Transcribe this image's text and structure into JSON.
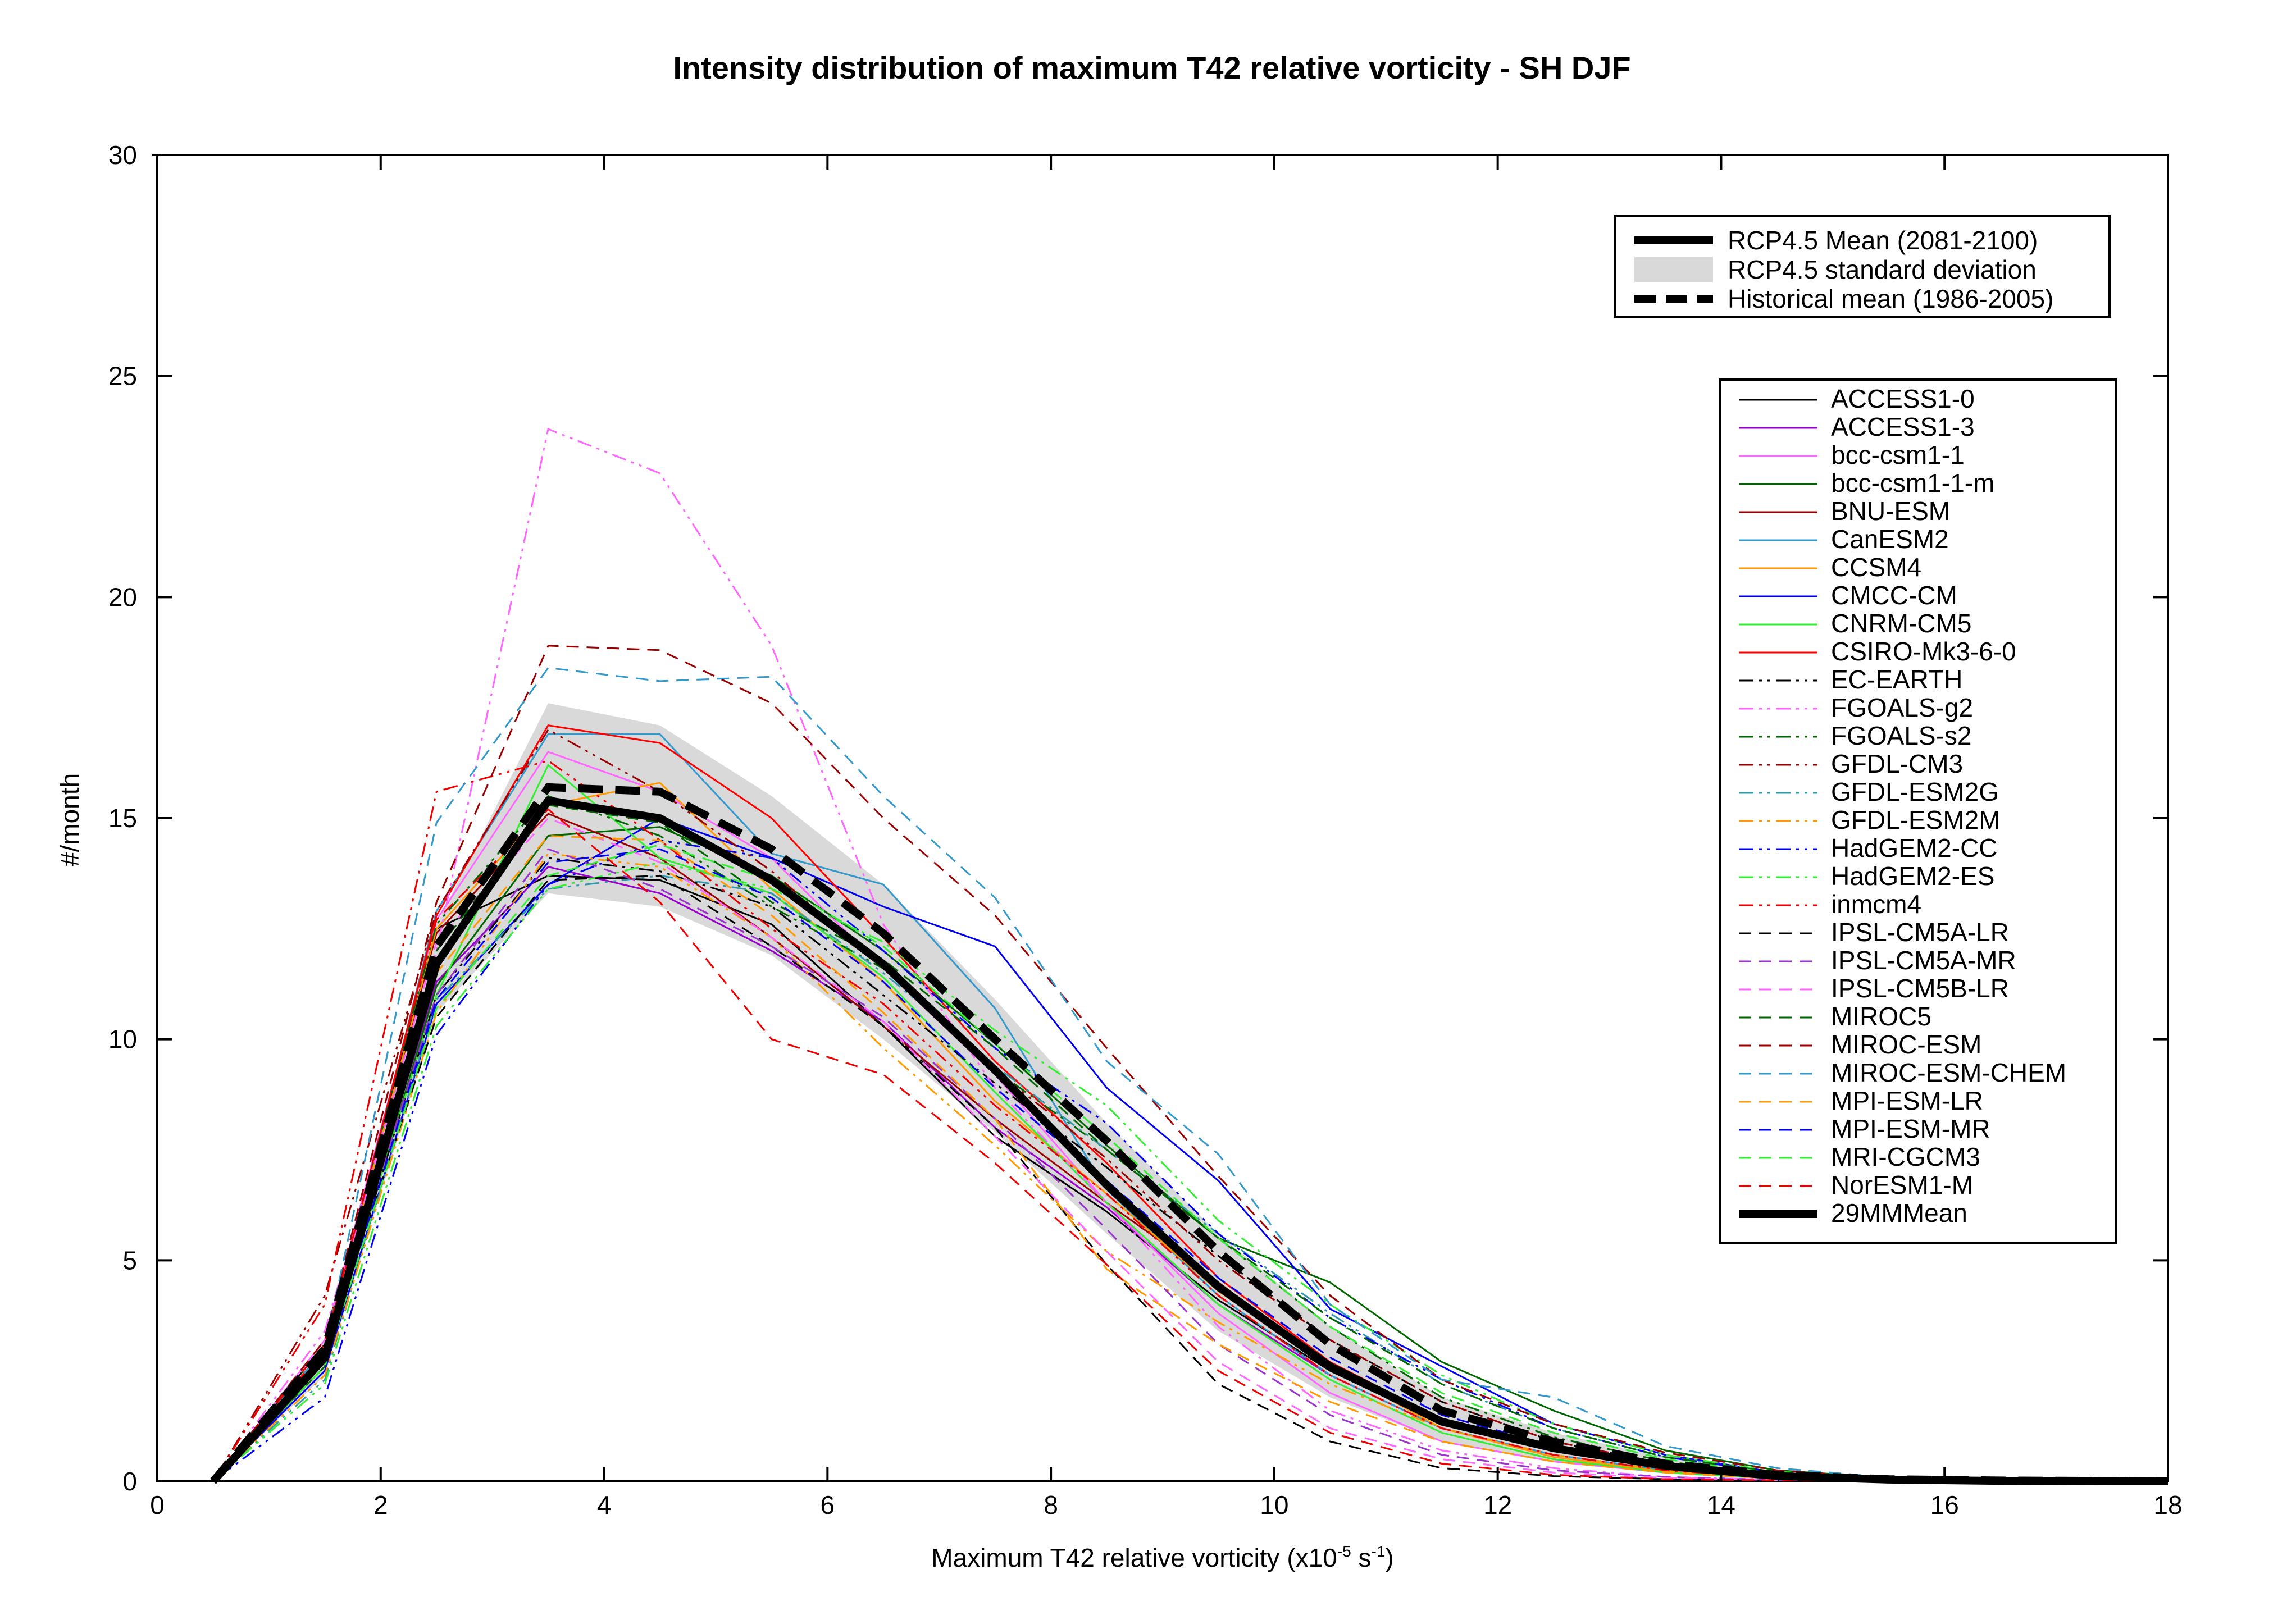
{
  "chart_data": {
    "type": "line",
    "title": "Intensity distribution of maximum T42 relative vorticity - SH DJF",
    "xlabel_main": "Maximum T42 relative vorticity (x10",
    "xlabel_exp": "-5",
    "xlabel_mid": " s",
    "xlabel_exp2": "-1",
    "xlabel_end": ")",
    "ylabel": "#/month",
    "xlim": [
      0,
      18
    ],
    "ylim": [
      0,
      30
    ],
    "xticks": [
      0,
      2,
      4,
      6,
      8,
      10,
      12,
      14,
      16,
      18
    ],
    "yticks": [
      0,
      5,
      10,
      15,
      20,
      25,
      30
    ],
    "grid": false,
    "x": [
      0.5,
      1.5,
      2.5,
      3.5,
      4.5,
      5.5,
      6.5,
      7.5,
      8.5,
      9.5,
      10.5,
      11.5,
      12.5,
      13.5,
      14.5,
      15.5,
      16.5,
      17.5,
      18
    ],
    "legend_top": {
      "placement": "top-right",
      "entries": [
        {
          "label": "RCP4.5 Mean (2081-2100)",
          "style": "thick-solid",
          "color": "#000000"
        },
        {
          "label": "RCP4.5 standard deviation",
          "style": "band",
          "color": "#d9d9d9"
        },
        {
          "label": "Historical mean (1986-2005)",
          "style": "thick-dashed",
          "color": "#000000"
        }
      ]
    },
    "std_band": {
      "upper": [
        0,
        3.2,
        12.6,
        17.6,
        17.1,
        15.5,
        13.5,
        10.9,
        8.1,
        5.6,
        3.5,
        1.9,
        1.1,
        0.55,
        0.22,
        0.08,
        0.03,
        0.01,
        0
      ],
      "lower": [
        0,
        2.4,
        10.6,
        13.3,
        13.0,
        11.9,
        10.0,
        7.9,
        5.6,
        3.4,
        1.9,
        0.9,
        0.45,
        0.2,
        0.06,
        0.02,
        0.01,
        0,
        0
      ]
    },
    "historical_mean": [
      0,
      3.0,
      12.1,
      15.7,
      15.6,
      14.3,
      12.4,
      10.0,
      7.7,
      5.2,
      3.1,
      1.6,
      0.9,
      0.4,
      0.15,
      0.05,
      0.02,
      0.01,
      0
    ],
    "rcp_mean": [
      0,
      2.8,
      11.7,
      15.4,
      15.0,
      13.6,
      11.7,
      9.3,
      6.7,
      4.4,
      2.6,
      1.35,
      0.75,
      0.35,
      0.12,
      0.04,
      0.01,
      0,
      0
    ],
    "series": [
      {
        "name": "ACCESS1-0",
        "color": "#000000",
        "dash": "solid",
        "values": [
          0,
          3.1,
          12.5,
          13.7,
          13.6,
          12.6,
          10.3,
          7.8,
          6.1,
          4.1,
          2.5,
          1.3,
          0.7,
          0.3,
          0.1,
          0.03,
          0.01,
          0,
          0
        ]
      },
      {
        "name": "ACCESS1-3",
        "color": "#9900cc",
        "dash": "solid",
        "values": [
          0,
          2.9,
          11.3,
          13.9,
          13.3,
          12.0,
          10.4,
          8.0,
          6.2,
          4.0,
          2.4,
          1.2,
          0.6,
          0.25,
          0.08,
          0.02,
          0.01,
          0,
          0
        ]
      },
      {
        "name": "bcc-csm1-1",
        "color": "#ff66ff",
        "dash": "solid",
        "values": [
          0,
          3.2,
          12.7,
          16.5,
          15.6,
          14.1,
          11.6,
          9.2,
          6.3,
          3.8,
          2.0,
          0.9,
          0.45,
          0.2,
          0.06,
          0.02,
          0.01,
          0,
          0
        ]
      },
      {
        "name": "bcc-csm1-1-m",
        "color": "#006600",
        "dash": "solid",
        "values": [
          0,
          2.6,
          11.2,
          14.6,
          14.8,
          13.7,
          12.0,
          9.9,
          7.6,
          5.5,
          4.5,
          2.7,
          1.6,
          0.7,
          0.25,
          0.08,
          0.02,
          0.01,
          0
        ]
      },
      {
        "name": "BNU-ESM",
        "color": "#990000",
        "dash": "solid",
        "values": [
          0,
          3.0,
          12.4,
          15.1,
          14.1,
          12.3,
          10.3,
          8.2,
          6.3,
          4.5,
          2.6,
          1.4,
          0.75,
          0.3,
          0.1,
          0.03,
          0.01,
          0,
          0
        ]
      },
      {
        "name": "CanESM2",
        "color": "#3399cc",
        "dash": "solid",
        "values": [
          0,
          2.8,
          12.9,
          16.9,
          16.9,
          14.2,
          13.5,
          10.7,
          6.6,
          4.2,
          2.4,
          1.2,
          0.6,
          0.25,
          0.08,
          0.02,
          0.01,
          0,
          0
        ]
      },
      {
        "name": "CCSM4",
        "color": "#ff9900",
        "dash": "solid",
        "values": [
          0,
          2.9,
          12.5,
          15.3,
          15.8,
          13.4,
          11.3,
          8.6,
          6.5,
          4.3,
          2.6,
          1.2,
          0.55,
          0.22,
          0.07,
          0.02,
          0.01,
          0,
          0
        ]
      },
      {
        "name": "CMCC-CM",
        "color": "#0000ee",
        "dash": "solid",
        "values": [
          0,
          2.5,
          10.8,
          13.5,
          15.0,
          14.1,
          13.0,
          12.1,
          8.9,
          6.8,
          3.9,
          2.6,
          1.3,
          0.6,
          0.2,
          0.06,
          0.02,
          0.01,
          0
        ]
      },
      {
        "name": "CNRM-CM5",
        "color": "#33ee33",
        "dash": "solid",
        "values": [
          0,
          2.8,
          11.0,
          16.2,
          14.1,
          13.3,
          11.4,
          8.8,
          6.3,
          4.0,
          2.3,
          1.1,
          0.5,
          0.2,
          0.06,
          0.02,
          0.01,
          0,
          0
        ]
      },
      {
        "name": "CSIRO-Mk3-6-0",
        "color": "#ff0000",
        "dash": "solid",
        "values": [
          0,
          3.0,
          12.8,
          17.1,
          16.7,
          15.0,
          12.3,
          9.5,
          7.2,
          4.6,
          2.7,
          1.4,
          0.7,
          0.3,
          0.1,
          0.03,
          0.01,
          0,
          0
        ]
      },
      {
        "name": "EC-EARTH",
        "color": "#000000",
        "dash": "dashdotdot",
        "values": [
          0,
          2.7,
          11.0,
          14.1,
          13.8,
          13.0,
          11.0,
          9.0,
          7.1,
          5.1,
          3.2,
          1.8,
          0.9,
          0.4,
          0.14,
          0.04,
          0.01,
          0,
          0
        ]
      },
      {
        "name": "FGOALS-g2",
        "color": "#ff66ff",
        "dash": "dashdotdot",
        "values": [
          0,
          3.4,
          12.0,
          23.8,
          22.8,
          18.9,
          12.6,
          8.9,
          6.3,
          3.5,
          1.6,
          0.7,
          0.3,
          0.1,
          0.04,
          0.01,
          0,
          0,
          0
        ]
      },
      {
        "name": "FGOALS-s2",
        "color": "#006600",
        "dash": "dashdotdot",
        "values": [
          0,
          3.1,
          12.6,
          15.5,
          14.6,
          13.0,
          11.6,
          9.3,
          7.5,
          5.5,
          3.5,
          1.9,
          1.0,
          0.45,
          0.15,
          0.05,
          0.01,
          0,
          0
        ]
      },
      {
        "name": "GFDL-CM3",
        "color": "#990000",
        "dash": "dashdotdot",
        "values": [
          0,
          4.2,
          12.9,
          17.0,
          15.6,
          13.8,
          11.6,
          9.3,
          7.3,
          5.0,
          3.2,
          1.8,
          0.9,
          0.4,
          0.13,
          0.04,
          0.01,
          0,
          0
        ]
      },
      {
        "name": "GFDL-ESM2G",
        "color": "#3399aa",
        "dash": "dashdotdot",
        "values": [
          0,
          2.3,
          10.9,
          13.4,
          13.7,
          13.3,
          11.5,
          9.4,
          7.5,
          5.6,
          3.8,
          2.2,
          1.2,
          0.55,
          0.2,
          0.06,
          0.02,
          0.01,
          0
        ]
      },
      {
        "name": "GFDL-ESM2M",
        "color": "#ff9900",
        "dash": "dashdotdot",
        "values": [
          0,
          2.4,
          10.6,
          14.2,
          13.9,
          12.3,
          9.8,
          7.6,
          5.2,
          3.6,
          2.2,
          1.2,
          0.6,
          0.25,
          0.08,
          0.02,
          0.01,
          0,
          0
        ]
      },
      {
        "name": "HadGEM2-CC",
        "color": "#0000ee",
        "dash": "dashdotdot",
        "values": [
          0,
          1.9,
          10.1,
          13.5,
          14.5,
          14.1,
          12.0,
          9.8,
          8.1,
          5.6,
          3.7,
          2.3,
          1.2,
          0.55,
          0.2,
          0.06,
          0.02,
          0.01,
          0
        ]
      },
      {
        "name": "HadGEM2-ES",
        "color": "#33ee33",
        "dash": "dashdotdot",
        "values": [
          0,
          2.2,
          10.3,
          13.4,
          14.0,
          13.4,
          12.2,
          10.2,
          8.5,
          5.9,
          4.0,
          2.4,
          1.3,
          0.6,
          0.22,
          0.07,
          0.02,
          0.01,
          0
        ]
      },
      {
        "name": "inmcm4",
        "color": "#ee0000",
        "dash": "dashdotdot",
        "values": [
          0,
          4.0,
          15.6,
          16.3,
          14.5,
          12.5,
          10.8,
          8.5,
          6.5,
          4.2,
          2.4,
          1.2,
          0.6,
          0.25,
          0.08,
          0.02,
          0.01,
          0,
          0
        ]
      },
      {
        "name": "IPSL-CM5A-LR",
        "color": "#000000",
        "dash": "dashed",
        "values": [
          0,
          2.9,
          10.5,
          13.6,
          13.7,
          12.1,
          10.3,
          8.0,
          4.9,
          2.2,
          0.9,
          0.3,
          0.12,
          0.05,
          0.02,
          0.01,
          0,
          0,
          0
        ]
      },
      {
        "name": "IPSL-CM5A-MR",
        "color": "#9933cc",
        "dash": "dashed",
        "values": [
          0,
          2.9,
          11.0,
          14.3,
          13.4,
          12.1,
          10.5,
          8.2,
          5.7,
          3.1,
          1.5,
          0.6,
          0.25,
          0.1,
          0.03,
          0.01,
          0,
          0,
          0
        ]
      },
      {
        "name": "IPSL-CM5B-LR",
        "color": "#ff66ff",
        "dash": "dashed",
        "values": [
          0,
          3.1,
          12.2,
          15.0,
          14.0,
          12.3,
          10.4,
          7.8,
          5.2,
          2.7,
          1.2,
          0.5,
          0.2,
          0.08,
          0.03,
          0.01,
          0,
          0,
          0
        ]
      },
      {
        "name": "MIROC5",
        "color": "#006600",
        "dash": "dashed",
        "values": [
          0,
          3.0,
          12.0,
          15.3,
          14.9,
          13.1,
          11.8,
          9.8,
          7.5,
          5.5,
          3.7,
          2.2,
          1.2,
          0.55,
          0.2,
          0.06,
          0.02,
          0.01,
          0
        ]
      },
      {
        "name": "MIROC-ESM",
        "color": "#990000",
        "dash": "dashed",
        "values": [
          0,
          3.2,
          13.1,
          18.9,
          18.8,
          17.6,
          15.0,
          12.8,
          9.8,
          6.9,
          4.2,
          2.3,
          1.3,
          0.65,
          0.25,
          0.08,
          0.02,
          0.01,
          0
        ]
      },
      {
        "name": "MIROC-ESM-CHEM",
        "color": "#3399cc",
        "dash": "dashed",
        "values": [
          0,
          3.0,
          14.9,
          18.4,
          18.1,
          18.2,
          15.5,
          13.2,
          9.5,
          7.4,
          4.0,
          2.3,
          1.9,
          0.8,
          0.3,
          0.09,
          0.03,
          0.01,
          0
        ]
      },
      {
        "name": "MPI-ESM-LR",
        "color": "#ff9900",
        "dash": "dashed",
        "values": [
          0,
          2.7,
          11.5,
          14.6,
          14.5,
          12.8,
          10.6,
          8.2,
          4.8,
          3.1,
          1.8,
          0.9,
          0.45,
          0.2,
          0.06,
          0.02,
          0.01,
          0,
          0
        ]
      },
      {
        "name": "MPI-ESM-MR",
        "color": "#0000ee",
        "dash": "dashed",
        "values": [
          0,
          2.7,
          10.9,
          14.0,
          14.3,
          13.2,
          11.3,
          8.9,
          6.8,
          4.6,
          2.8,
          1.5,
          0.8,
          0.35,
          0.12,
          0.04,
          0.01,
          0,
          0
        ]
      },
      {
        "name": "MRI-CGCM3",
        "color": "#33ee33",
        "dash": "dashed",
        "values": [
          0,
          2.6,
          10.7,
          13.7,
          14.4,
          13.6,
          12.1,
          9.9,
          7.8,
          5.5,
          3.5,
          2.0,
          1.1,
          0.5,
          0.18,
          0.06,
          0.02,
          0.01,
          0
        ]
      },
      {
        "name": "NorESM1-M",
        "color": "#ee0000",
        "dash": "dashed",
        "values": [
          0,
          3.1,
          12.7,
          15.2,
          13.1,
          10.0,
          9.2,
          7.2,
          4.9,
          2.5,
          1.1,
          0.4,
          0.15,
          0.05,
          0.02,
          0.01,
          0,
          0,
          0
        ]
      },
      {
        "name": "29MMMean",
        "color": "#000000",
        "dash": "thick-solid",
        "values": [
          0,
          2.8,
          11.7,
          15.4,
          15.0,
          13.6,
          11.7,
          9.3,
          6.7,
          4.4,
          2.6,
          1.35,
          0.75,
          0.35,
          0.12,
          0.04,
          0.01,
          0,
          0
        ]
      }
    ]
  }
}
